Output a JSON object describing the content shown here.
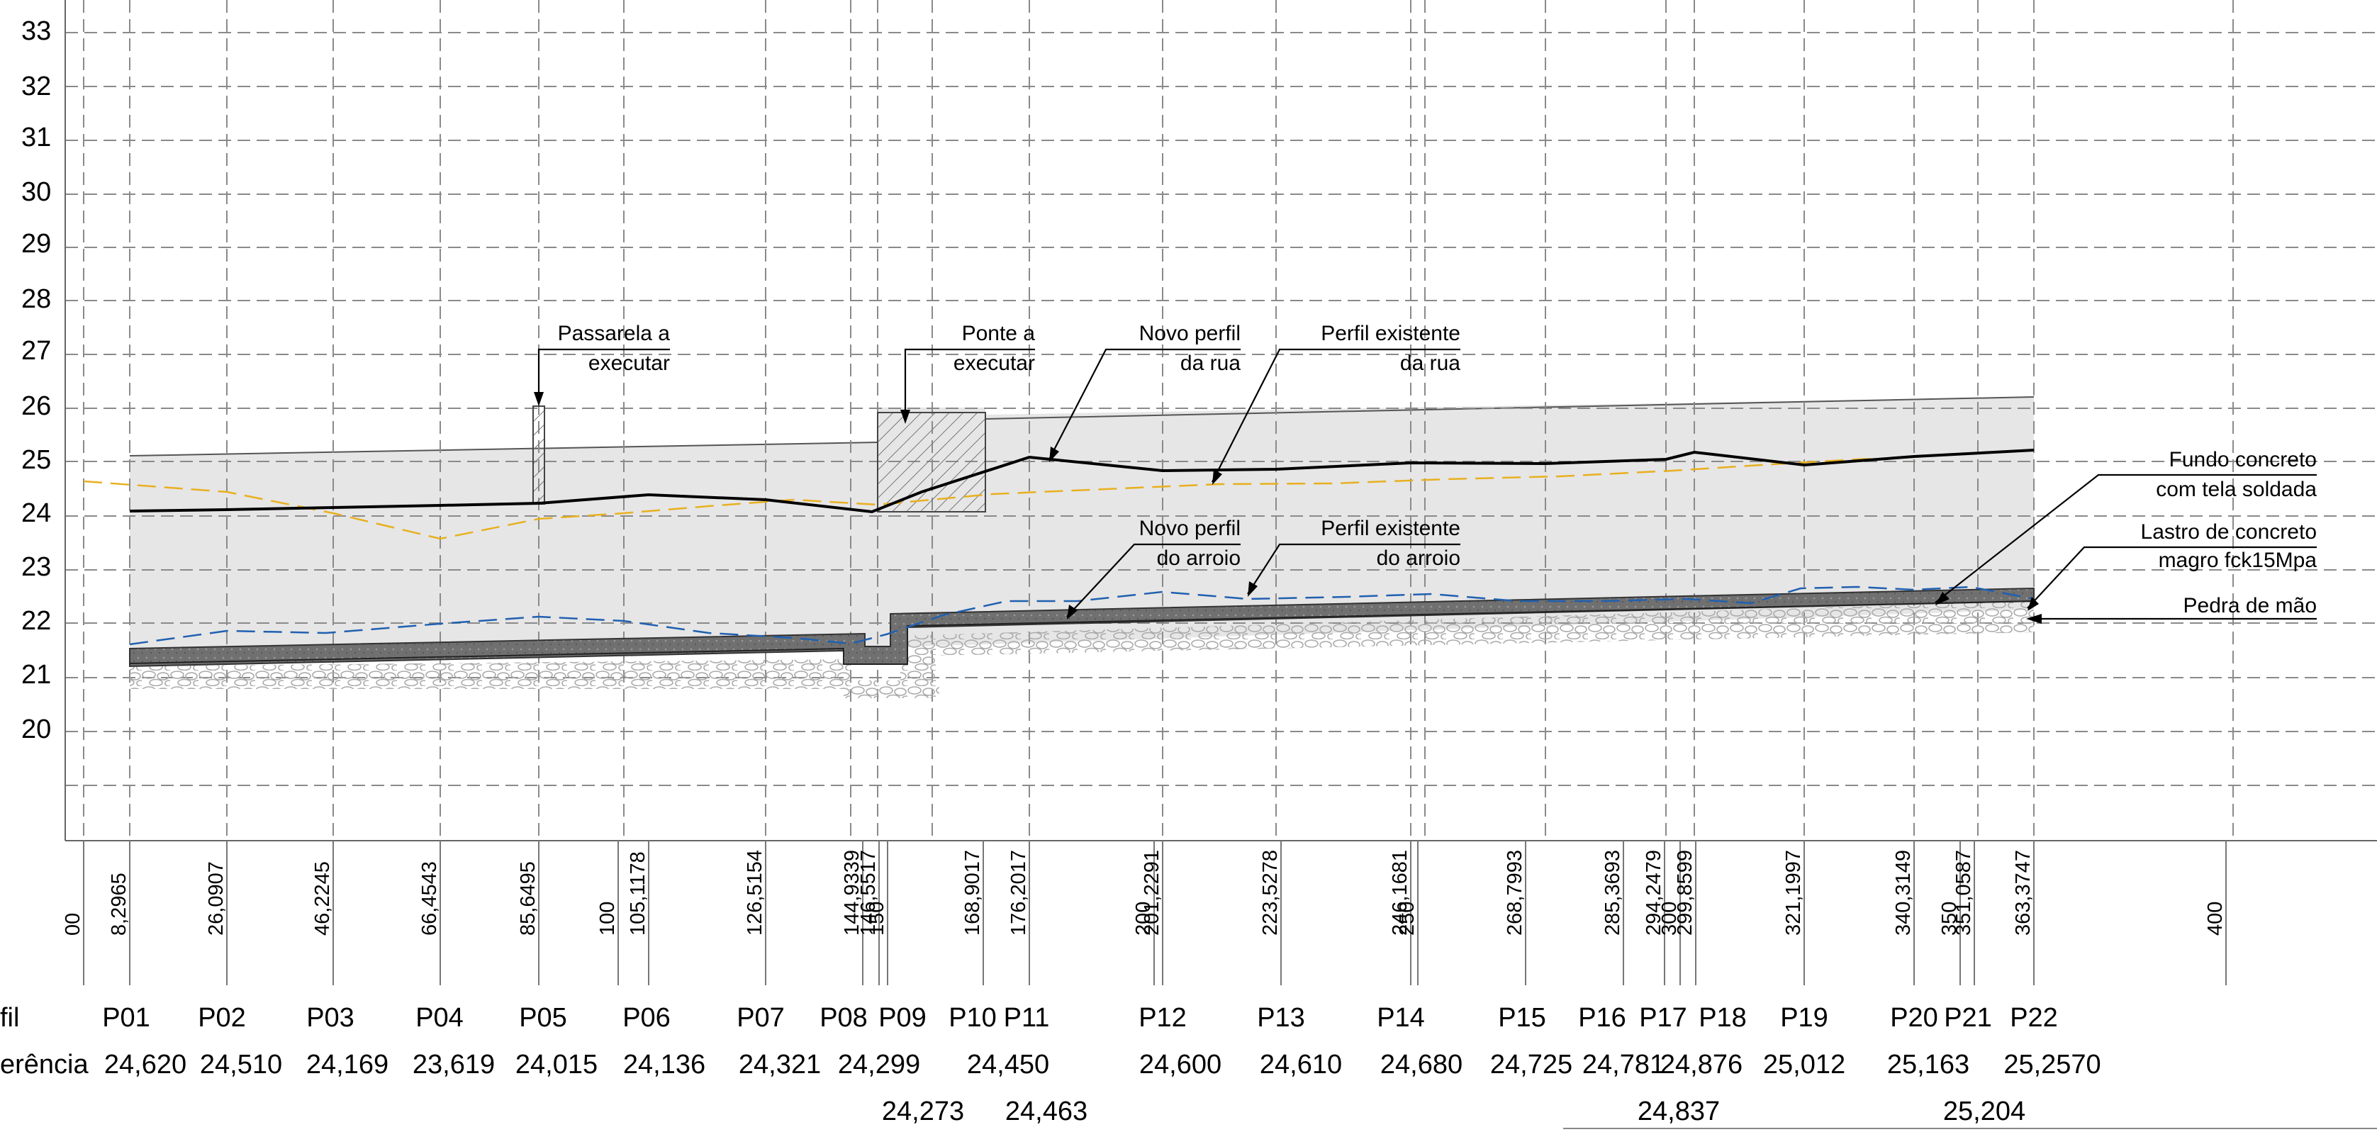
{
  "y_axis_labels": [
    "33",
    "32",
    "31",
    "30",
    "29",
    "28",
    "27",
    "26",
    "25",
    "24",
    "23",
    "22",
    "21",
    "20"
  ],
  "annotations": {
    "passarela": [
      "Passarela a",
      "executar"
    ],
    "ponte": [
      "Ponte a",
      "executar"
    ],
    "novo_rua": [
      "Novo perfil",
      "da rua"
    ],
    "exist_rua": [
      "Perfil existente",
      "da rua"
    ],
    "novo_arroio": [
      "Novo perfil",
      "do arroio"
    ],
    "exist_arroio": [
      "Perfil existente",
      "do arroio"
    ],
    "fundo": [
      "Fundo concreto",
      "com tela soldada"
    ],
    "lastro": [
      "Lastro de concreto",
      "magro fck15Mpa"
    ],
    "pedra": [
      "Pedra de mão"
    ]
  },
  "stations": [
    "00",
    "8,2965",
    "26,0907",
    "46,2245",
    "66,4543",
    "85,6495",
    "100",
    "105,1178",
    "126,5154",
    "144,9339",
    "146,5517",
    "150",
    "168,9017",
    "176,2017",
    "200",
    "201,2291",
    "223,5278",
    "246,1681",
    "250",
    "268,7993",
    "285,3693",
    "294,2479",
    "300",
    "299,8599",
    "321,1997",
    "340,3149",
    "350",
    "351,0587",
    "363,3747",
    "400"
  ],
  "row_labels": {
    "perfil": "fil",
    "referencia": "erência"
  },
  "profile_names": [
    "P01",
    "P02",
    "P03",
    "P04",
    "P05",
    "P06",
    "P07",
    "P08",
    "P09",
    "P10",
    "P11",
    "P12",
    "P13",
    "P14",
    "P15",
    "P16",
    "P17",
    "P18",
    "P19",
    "P20",
    "P21",
    "P22"
  ],
  "reference_values": [
    "24,620",
    "24,510",
    "24,169",
    "23,619",
    "24,015",
    "24,136",
    "24,321",
    "24,299",
    "24,450",
    "24,600",
    "24,610",
    "24,680",
    "24,725",
    "24,781",
    "24,876",
    "25,012",
    "25,163",
    "25,2570"
  ],
  "reference_values_lower": [
    "24,273",
    "24,463",
    "24,837",
    "25,204"
  ],
  "colors": {
    "existing_street": "#e8b020",
    "existing_stream": "#2060b0",
    "fill_area": "#e6e6e6",
    "concrete": "#666666"
  }
}
